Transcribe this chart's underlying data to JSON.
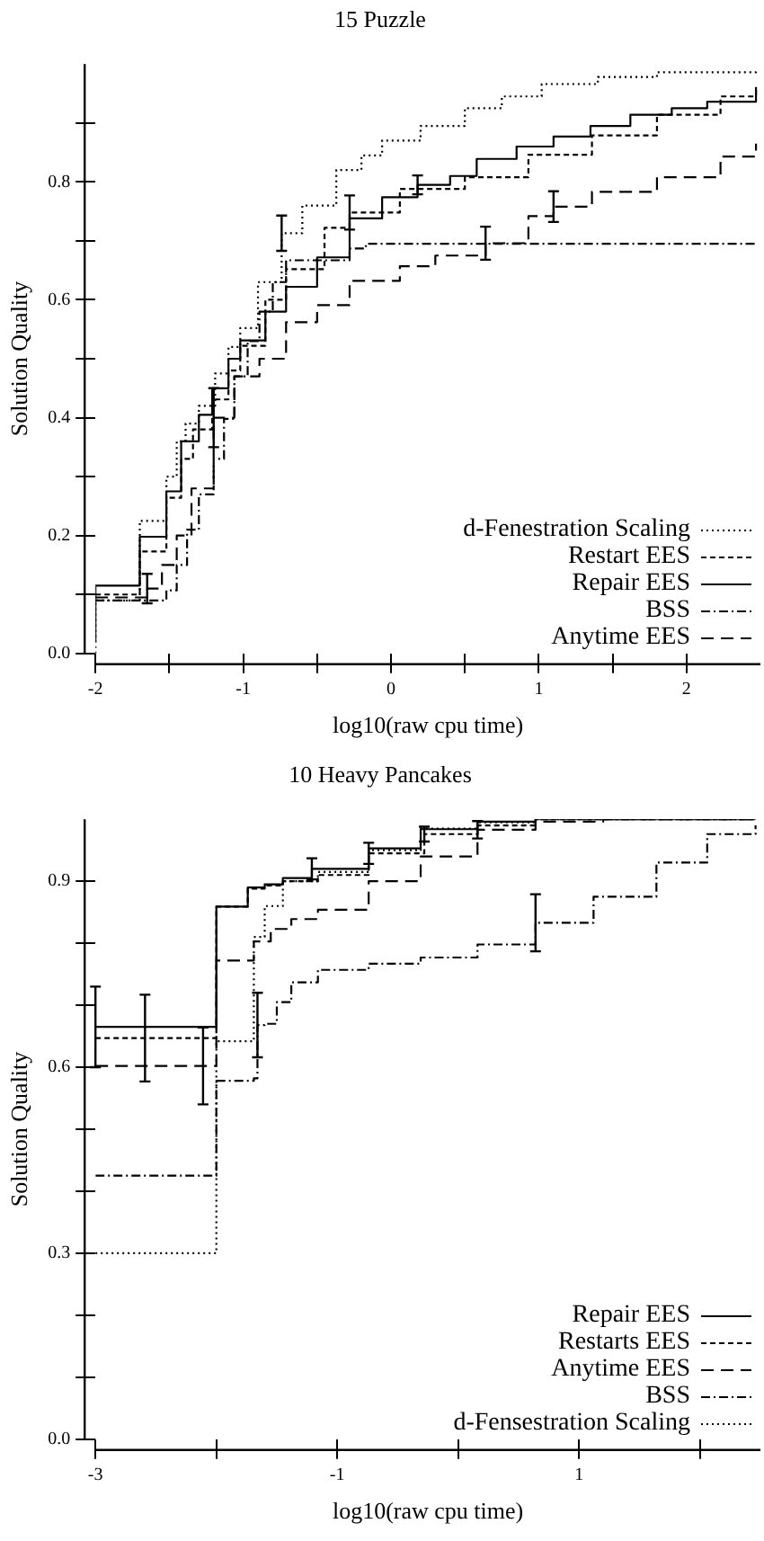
{
  "chart_data": [
    {
      "type": "step",
      "title": "15 Puzzle",
      "xlabel": "log10(raw cpu time)",
      "ylabel": "Solution Quality",
      "xlim": [
        -2,
        2.5
      ],
      "ylim": [
        0,
        1
      ],
      "xticks": [
        -2,
        {
          "value": -1.5,
          "label": null
        },
        -1,
        {
          "value": -0.5,
          "label": null
        },
        0,
        {
          "value": 0.5,
          "label": null
        },
        1,
        {
          "value": 1.5,
          "label": null
        },
        2
      ],
      "yticks": [
        {
          "value": 0,
          "label": "0.0"
        },
        {
          "value": 0.1,
          "label": null
        },
        0.2,
        {
          "value": 0.3,
          "label": null
        },
        0.4,
        {
          "value": 0.5,
          "label": null
        },
        0.6,
        {
          "value": 0.7,
          "label": null
        },
        0.8,
        {
          "value": 0.9,
          "label": null
        }
      ],
      "grid": false,
      "legend": "bottom right",
      "series": [
        {
          "name": "d-Fenestration Scaling",
          "color": "#000000",
          "line_style": "dotted",
          "x": [
            -2,
            -2,
            -1.7,
            -1.52,
            -1.45,
            -1.39,
            -1.3,
            -1.19,
            -1.1,
            -1.02,
            -0.9,
            -0.74,
            -0.6,
            -0.37,
            -0.2,
            -0.06,
            0.2,
            0.5,
            0.75,
            1.02,
            1.4,
            1.8,
            2.47
          ],
          "values": [
            0,
            0.09,
            0.225,
            0.3,
            0.36,
            0.39,
            0.42,
            0.475,
            0.52,
            0.552,
            0.63,
            0.713,
            0.76,
            0.82,
            0.845,
            0.87,
            0.895,
            0.925,
            0.945,
            0.966,
            0.978,
            0.986,
            0.991
          ],
          "errors": [
            null,
            null,
            null,
            null,
            null,
            null,
            null,
            null,
            null,
            null,
            null,
            0.03,
            null,
            null,
            null,
            null,
            null,
            null,
            null,
            null,
            null,
            null,
            null
          ]
        },
        {
          "name": "Restart EES",
          "color": "#000000",
          "line_style": "dashed",
          "x": [
            -2,
            -1.7,
            -1.52,
            -1.42,
            -1.34,
            -1.21,
            -1.1,
            -1.02,
            -0.85,
            -0.71,
            -0.45,
            -0.28,
            0.06,
            0.5,
            0.93,
            1.36,
            1.8,
            2.23,
            2.47
          ],
          "values": [
            0.1,
            0.173,
            0.264,
            0.33,
            0.38,
            0.431,
            0.48,
            0.522,
            0.6,
            0.652,
            0.722,
            0.748,
            0.788,
            0.808,
            0.846,
            0.879,
            0.914,
            0.945,
            0.961
          ],
          "errors": [
            null,
            null,
            null,
            null,
            null,
            null,
            null,
            null,
            null,
            null,
            null,
            0.029,
            null,
            null,
            null,
            null,
            null,
            null,
            null
          ]
        },
        {
          "name": "Repair EES",
          "color": "#000000",
          "line_style": "solid",
          "x": [
            -2,
            -2,
            -1.7,
            -1.52,
            -1.42,
            -1.3,
            -1.21,
            -1.1,
            -1.02,
            -0.85,
            -0.71,
            -0.5,
            -0.28,
            -0.06,
            0.18,
            0.4,
            0.58,
            0.85,
            1.1,
            1.35,
            1.62,
            1.9,
            2.14,
            2.47
          ],
          "values": [
            0.02,
            0.115,
            0.198,
            0.275,
            0.36,
            0.405,
            0.45,
            0.5,
            0.531,
            0.58,
            0.622,
            0.672,
            0.738,
            0.774,
            0.795,
            0.81,
            0.839,
            0.86,
            0.877,
            0.895,
            0.914,
            0.925,
            0.936,
            0.961
          ],
          "errors": [
            null,
            null,
            null,
            null,
            null,
            null,
            null,
            null,
            null,
            null,
            null,
            null,
            null,
            null,
            0.016,
            null,
            null,
            null,
            null,
            null,
            null,
            null,
            null,
            null
          ]
        },
        {
          "name": "BSS",
          "color": "#000000",
          "line_style": "dashdot",
          "x": [
            -2,
            -1.52,
            -1.45,
            -1.38,
            -1.3,
            -1.2,
            -1.13,
            -1.06,
            -0.97,
            -0.89,
            -0.8,
            -0.71,
            -0.5,
            -0.28,
            -0.17,
            2.47
          ],
          "values": [
            0.09,
            0.107,
            0.15,
            0.21,
            0.27,
            0.33,
            0.398,
            0.47,
            0.53,
            0.58,
            0.63,
            0.667,
            0.667,
            0.687,
            0.695,
            0.695
          ]
        },
        {
          "name": "Anytime EES",
          "color": "#000000",
          "line_style": "longdash",
          "x": [
            -2,
            -1.65,
            -1.55,
            -1.45,
            -1.35,
            -1.2,
            -1.06,
            -0.89,
            -0.71,
            -0.5,
            -0.28,
            0.06,
            0.3,
            0.64,
            0.93,
            1.1,
            1.36,
            1.8,
            2.23,
            2.47
          ],
          "values": [
            0.095,
            0.11,
            0.15,
            0.2,
            0.28,
            0.4,
            0.47,
            0.5,
            0.562,
            0.591,
            0.632,
            0.657,
            0.675,
            0.696,
            0.742,
            0.758,
            0.783,
            0.808,
            0.843,
            0.865
          ],
          "errors": [
            null,
            0.025,
            null,
            null,
            null,
            0.05,
            null,
            null,
            null,
            null,
            null,
            null,
            null,
            0.028,
            null,
            0.026,
            null,
            null,
            null,
            null
          ]
        }
      ]
    },
    {
      "type": "step",
      "title": "10 Heavy Pancakes",
      "xlabel": "log10(raw cpu time)",
      "ylabel": "Solution Quality",
      "xlim": [
        -3,
        2.5
      ],
      "ylim": [
        0,
        1
      ],
      "xticks": [
        -3,
        {
          "value": -2,
          "label": null
        },
        -1,
        {
          "value": 0,
          "label": null
        },
        1,
        {
          "value": 2,
          "label": null
        }
      ],
      "yticks": [
        {
          "value": 0,
          "label": "0.0"
        },
        {
          "value": 0.1,
          "label": null
        },
        {
          "value": 0.2,
          "label": null
        },
        0.3,
        {
          "value": 0.4,
          "label": null
        },
        {
          "value": 0.5,
          "label": null
        },
        0.6,
        {
          "value": 0.7,
          "label": null
        },
        {
          "value": 0.8,
          "label": null
        },
        0.9
      ],
      "grid": false,
      "legend": "bottom right",
      "series": [
        {
          "name": "Repair EES",
          "color": "#000000",
          "line_style": "solid",
          "x": [
            -3,
            -2,
            -1.74,
            -1.6,
            -1.45,
            -1.21,
            -0.74,
            -0.31,
            0.16,
            0.64,
            2.46
          ],
          "values": [
            0.665,
            0.859,
            0.89,
            0.895,
            0.905,
            0.92,
            0.953,
            0.984,
            0.996,
            1,
            1
          ],
          "errors": [
            0.065,
            null,
            null,
            null,
            null,
            0.017,
            null,
            null,
            null,
            null,
            null
          ]
        },
        {
          "name": "Restarts EES",
          "color": "#000000",
          "line_style": "dashed",
          "x": [
            -3,
            -2.59,
            -2,
            -1.74,
            -1.6,
            -1.45,
            -1.16,
            -0.74,
            -0.28,
            0.16,
            0.64,
            2.46
          ],
          "values": [
            0.647,
            0.647,
            0.859,
            0.888,
            0.893,
            0.9,
            0.91,
            0.945,
            0.976,
            0.99,
            1,
            1
          ],
          "errors": [
            null,
            0.07,
            null,
            null,
            null,
            null,
            null,
            0.017,
            0.012,
            null,
            null,
            null
          ]
        },
        {
          "name": "Anytime EES",
          "color": "#000000",
          "line_style": "longdash",
          "x": [
            -3,
            -2.11,
            -2,
            -1.69,
            -1.55,
            -1.38,
            -1.16,
            -0.74,
            -0.31,
            0.16,
            0.64,
            1.2,
            2.46
          ],
          "values": [
            0.602,
            0.602,
            0.772,
            0.803,
            0.823,
            0.839,
            0.854,
            0.9,
            0.94,
            0.983,
            0.996,
            1,
            1
          ],
          "errors": [
            null,
            0.062,
            null,
            null,
            null,
            null,
            null,
            null,
            null,
            0.014,
            null,
            null,
            null
          ]
        },
        {
          "name": "BSS",
          "color": "#000000",
          "line_style": "dashdot",
          "x": [
            -3,
            -2,
            -1.69,
            -1.66,
            -1.6,
            -1.5,
            -1.38,
            -1.16,
            -0.74,
            -0.31,
            0.16,
            0.64,
            1.12,
            1.64,
            2.06,
            2.46
          ],
          "values": [
            0.425,
            0.578,
            0.582,
            0.668,
            0.67,
            0.705,
            0.737,
            0.757,
            0.767,
            0.777,
            0.798,
            0.833,
            0.875,
            0.93,
            0.976,
            0.99
          ],
          "errors": [
            null,
            null,
            null,
            0.052,
            null,
            null,
            null,
            null,
            null,
            null,
            null,
            0.046,
            null,
            null,
            null,
            null
          ]
        },
        {
          "name": "d-Fensestration Scaling",
          "color": "#000000",
          "line_style": "dotted",
          "x": [
            -3,
            -2,
            -1.69,
            -1.6,
            -1.45,
            -1.16,
            -0.74,
            -0.31,
            0.16,
            0.64,
            2.46
          ],
          "values": [
            0.3,
            0.642,
            0.81,
            0.86,
            0.9,
            0.915,
            0.95,
            0.985,
            0.995,
            1,
            1
          ]
        }
      ]
    }
  ]
}
